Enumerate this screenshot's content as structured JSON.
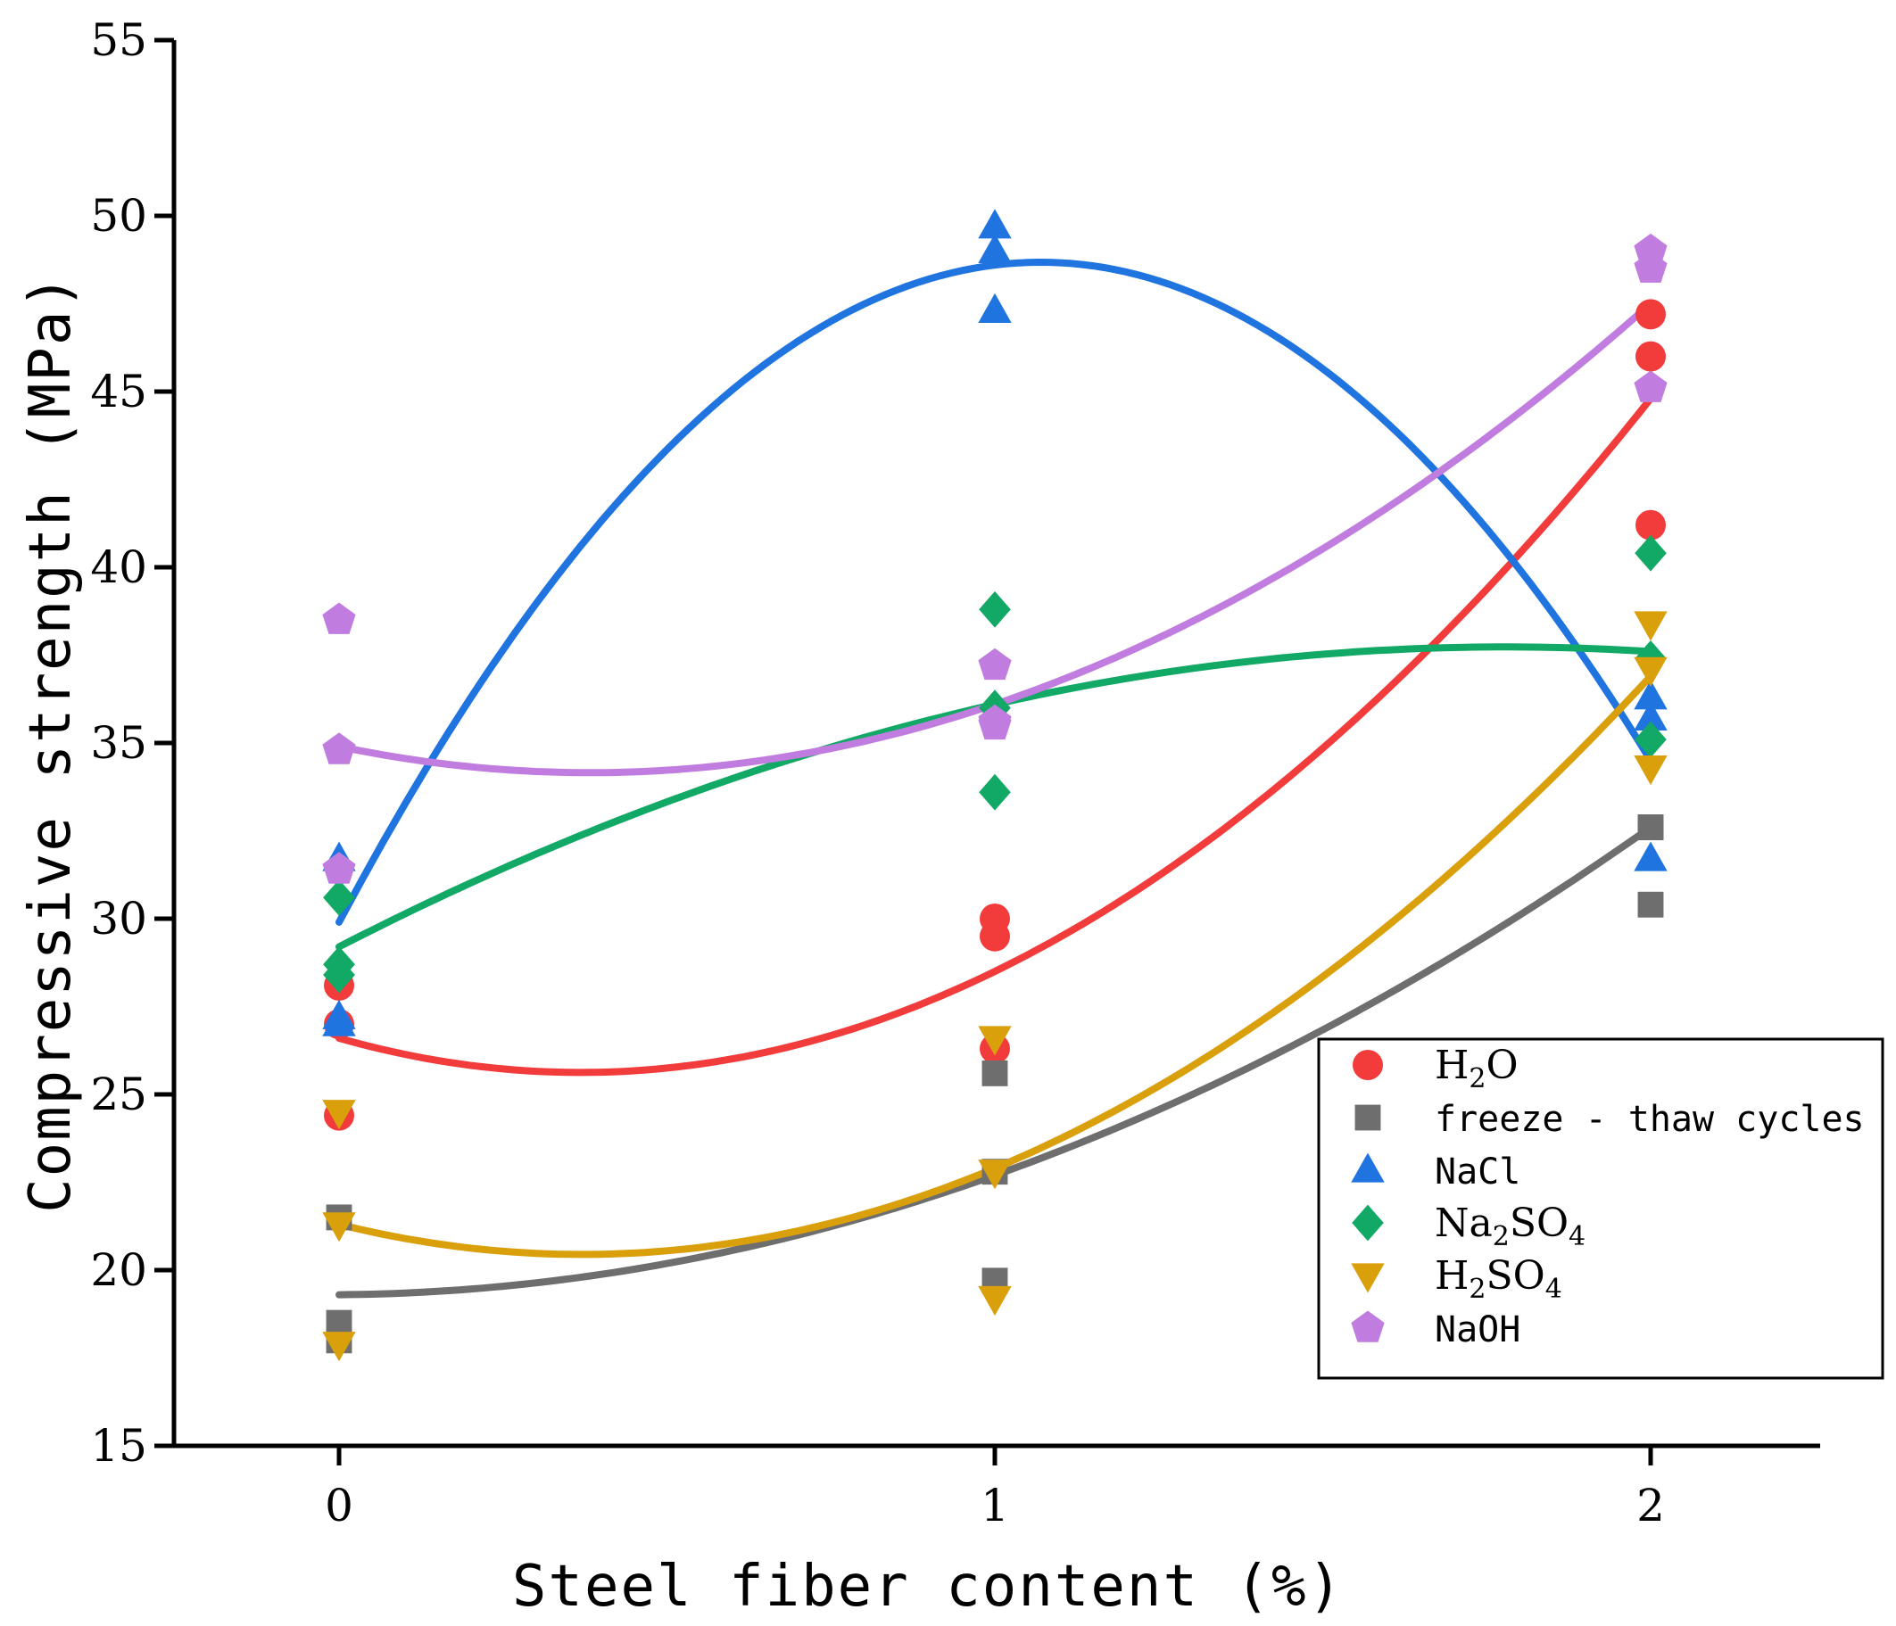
{
  "chart_data": {
    "type": "scatter",
    "title": "",
    "xlabel": "Steel fiber content (%)",
    "ylabel": "Compressive strength (MPa)",
    "xlim": [
      -0.25,
      2.25
    ],
    "ylim": [
      15,
      55
    ],
    "xticks": [
      0,
      1,
      2
    ],
    "yticks": [
      15,
      20,
      25,
      30,
      35,
      40,
      45,
      50,
      55
    ],
    "xtick_labels": [
      "0",
      "1",
      "2"
    ],
    "ytick_labels": [
      "15",
      "20",
      "25",
      "30",
      "35",
      "40",
      "45",
      "50",
      "55"
    ],
    "grid": false,
    "legend_position": "bottom-right",
    "fit": "quadratic",
    "series": [
      {
        "name": "H2O",
        "legend": {
          "main": "H",
          "sub": "2",
          "rest": "O"
        },
        "color": "#f23c3c",
        "marker": "circle",
        "points": [
          [
            0,
            28.1
          ],
          [
            0,
            27.0
          ],
          [
            0,
            24.4
          ],
          [
            1,
            30.0
          ],
          [
            1,
            29.5
          ],
          [
            1,
            26.3
          ],
          [
            2,
            47.2
          ],
          [
            2,
            46.0
          ],
          [
            2,
            41.2
          ]
        ],
        "fit_values": [
          26.6,
          28.5,
          44.8
        ]
      },
      {
        "name": "freeze - thaw cycles",
        "color": "#6e6e6e",
        "marker": "square",
        "points": [
          [
            0,
            21.5
          ],
          [
            0,
            18.5
          ],
          [
            0,
            18.0
          ],
          [
            1,
            25.6
          ],
          [
            1,
            22.8
          ],
          [
            1,
            19.7
          ],
          [
            2,
            32.6
          ],
          [
            2,
            32.6
          ],
          [
            2,
            30.4
          ]
        ],
        "fit_values": [
          19.3,
          22.7,
          32.6
        ]
      },
      {
        "name": "NaCl",
        "color": "#1f74e0",
        "marker": "triangle-up",
        "points": [
          [
            0,
            31.7
          ],
          [
            0,
            27.2
          ],
          [
            0,
            27.0
          ],
          [
            1,
            49.7
          ],
          [
            1,
            49.0
          ],
          [
            1,
            47.3
          ],
          [
            2,
            36.3
          ],
          [
            2,
            35.7
          ],
          [
            2,
            31.7
          ]
        ],
        "fit_values": [
          29.9,
          48.6,
          34.5
        ]
      },
      {
        "name": "Na2SO4",
        "legend": {
          "main": "Na",
          "sub": "2",
          "rest": "SO",
          "sub2": "4"
        },
        "color": "#12a865",
        "marker": "diamond",
        "points": [
          [
            0,
            30.6
          ],
          [
            0,
            28.7
          ],
          [
            0,
            28.4
          ],
          [
            1,
            38.8
          ],
          [
            1,
            36.0
          ],
          [
            1,
            33.6
          ],
          [
            2,
            40.4
          ],
          [
            2,
            37.4
          ],
          [
            2,
            35.1
          ]
        ],
        "fit_values": [
          29.2,
          36.1,
          37.6
        ]
      },
      {
        "name": "H2SO4",
        "legend": {
          "main": "H",
          "sub": "2",
          "rest": "SO",
          "sub2": "4"
        },
        "color": "#d9a00c",
        "marker": "triangle-down",
        "points": [
          [
            0,
            24.5
          ],
          [
            0,
            21.3
          ],
          [
            0,
            17.9
          ],
          [
            1,
            26.6
          ],
          [
            1,
            22.8
          ],
          [
            1,
            19.2
          ],
          [
            2,
            38.4
          ],
          [
            2,
            37.1
          ],
          [
            2,
            34.3
          ]
        ],
        "fit_values": [
          21.3,
          22.9,
          36.9
        ]
      },
      {
        "name": "NaOH",
        "color": "#c07ddf",
        "marker": "pentagon",
        "points": [
          [
            0,
            38.5
          ],
          [
            0,
            34.8
          ],
          [
            0,
            31.4
          ],
          [
            1,
            37.2
          ],
          [
            1,
            35.5
          ],
          [
            1,
            35.6
          ],
          [
            2,
            49.0
          ],
          [
            2,
            48.5
          ],
          [
            2,
            45.1
          ]
        ],
        "fit_values": [
          34.9,
          36.1,
          47.5
        ]
      }
    ]
  }
}
